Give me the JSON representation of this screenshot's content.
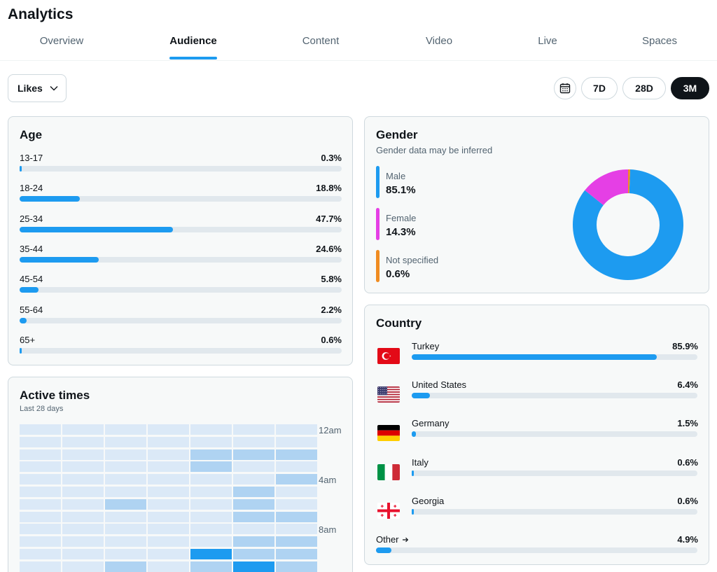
{
  "page": {
    "title": "Analytics"
  },
  "tabs": [
    {
      "label": "Overview",
      "active": false
    },
    {
      "label": "Audience",
      "active": true
    },
    {
      "label": "Content",
      "active": false
    },
    {
      "label": "Video",
      "active": false
    },
    {
      "label": "Live",
      "active": false
    },
    {
      "label": "Spaces",
      "active": false
    }
  ],
  "filters": {
    "metric": "Likes",
    "ranges": [
      {
        "label": "7D",
        "selected": false
      },
      {
        "label": "28D",
        "selected": false
      },
      {
        "label": "3M",
        "selected": true
      }
    ]
  },
  "colors": {
    "accent": "#1d9bf0",
    "male": "#1d9bf0",
    "female": "#e53fe5",
    "not_specified": "#f08c21"
  },
  "age": {
    "title": "Age",
    "rows": [
      {
        "label": "13-17",
        "value": "0.3%",
        "pct": 0.3
      },
      {
        "label": "18-24",
        "value": "18.8%",
        "pct": 18.8
      },
      {
        "label": "25-34",
        "value": "47.7%",
        "pct": 47.7
      },
      {
        "label": "35-44",
        "value": "24.6%",
        "pct": 24.6
      },
      {
        "label": "45-54",
        "value": "5.8%",
        "pct": 5.8
      },
      {
        "label": "55-64",
        "value": "2.2%",
        "pct": 2.2
      },
      {
        "label": "65+",
        "value": "0.6%",
        "pct": 0.6
      }
    ]
  },
  "gender": {
    "title": "Gender",
    "subtitle": "Gender data may be inferred",
    "items": [
      {
        "label": "Male",
        "value": "85.1%",
        "pct": 85.1,
        "color": "#1d9bf0"
      },
      {
        "label": "Female",
        "value": "14.3%",
        "pct": 14.3,
        "color": "#e53fe5"
      },
      {
        "label": "Not specified",
        "value": "0.6%",
        "pct": 0.6,
        "color": "#f08c21"
      }
    ]
  },
  "country": {
    "title": "Country",
    "rows": [
      {
        "name": "Turkey",
        "value": "85.9%",
        "pct": 85.9,
        "flag": "turkey-flag-icon"
      },
      {
        "name": "United States",
        "value": "6.4%",
        "pct": 6.4,
        "flag": "united-states-flag-icon"
      },
      {
        "name": "Germany",
        "value": "1.5%",
        "pct": 1.5,
        "flag": "germany-flag-icon"
      },
      {
        "name": "Italy",
        "value": "0.6%",
        "pct": 0.6,
        "flag": "italy-flag-icon"
      },
      {
        "name": "Georgia",
        "value": "0.6%",
        "pct": 0.6,
        "flag": "georgia-flag-icon"
      }
    ],
    "other": {
      "label": "Other",
      "value": "4.9%",
      "pct": 4.9
    }
  },
  "active_times": {
    "title": "Active times",
    "subtitle": "Last 28 days",
    "hour_labels": [
      "12am",
      "4am",
      "8am"
    ],
    "levels": [
      [
        1,
        1,
        1,
        1,
        1,
        1,
        1
      ],
      [
        1,
        1,
        1,
        1,
        1,
        1,
        1
      ],
      [
        1,
        1,
        1,
        1,
        2,
        2,
        2
      ],
      [
        1,
        1,
        1,
        1,
        2,
        1,
        1
      ],
      [
        1,
        1,
        1,
        1,
        1,
        1,
        2
      ],
      [
        1,
        1,
        1,
        1,
        1,
        2,
        1
      ],
      [
        1,
        1,
        2,
        1,
        1,
        2,
        1
      ],
      [
        1,
        1,
        1,
        1,
        1,
        2,
        2
      ],
      [
        1,
        1,
        1,
        1,
        1,
        1,
        1
      ],
      [
        1,
        1,
        1,
        1,
        1,
        2,
        2
      ],
      [
        1,
        1,
        1,
        1,
        4,
        2,
        2
      ],
      [
        1,
        1,
        2,
        1,
        2,
        4,
        2
      ]
    ]
  }
}
